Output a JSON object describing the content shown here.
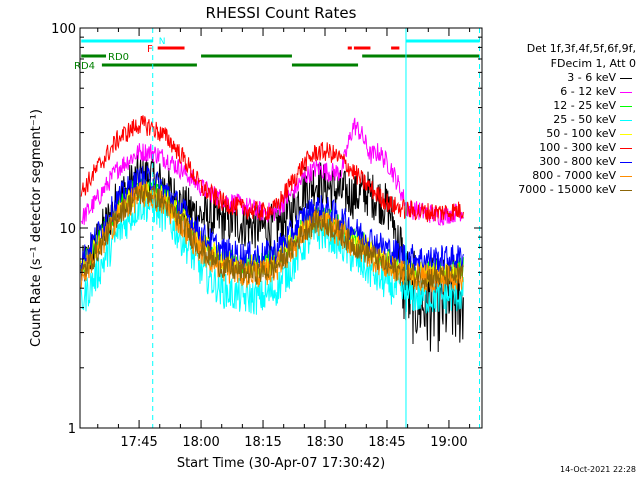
{
  "chart_data": {
    "type": "line",
    "title": "RHESSI Count Rates",
    "xlabel": "Start Time (30-Apr-07 17:30:42)",
    "ylabel": "Count Rate (s⁻¹ detector segment⁻¹)",
    "yscale": "log",
    "ylim": [
      1,
      100
    ],
    "y_ticks": [
      "1",
      "10",
      "100"
    ],
    "xlim": [
      30.7,
      128
    ],
    "x_units": "minutes after 17:00 UT, 30-Apr-07",
    "x_ticks": [
      {
        "value": 45,
        "label": "17:45"
      },
      {
        "value": 60,
        "label": "18:00"
      },
      {
        "value": 75,
        "label": "18:15"
      },
      {
        "value": 90,
        "label": "18:30"
      },
      {
        "value": 105,
        "label": "18:45"
      },
      {
        "value": 120,
        "label": "19:00"
      }
    ],
    "night_boundaries": [
      48.3,
      109.6,
      127.4
    ],
    "flag_label": "N",
    "flag_bars": [
      {
        "label": "N",
        "color": "#00ffff",
        "segments": [
          [
            31,
            48.3
          ],
          [
            109.6,
            127.4
          ]
        ]
      },
      {
        "label": "F",
        "color": "#ff0000",
        "segments": [
          [
            49.5,
            56
          ],
          [
            95.5,
            96.5
          ],
          [
            97,
            101
          ],
          [
            106,
            108
          ]
        ]
      },
      {
        "label": "RD0",
        "color": "#008000",
        "segments": [
          [
            31,
            37
          ],
          [
            60,
            82
          ],
          [
            99,
            127.4
          ]
        ]
      },
      {
        "label": "RD4",
        "color": "#008000",
        "segments": [
          [
            36,
            59
          ],
          [
            82,
            98
          ]
        ]
      }
    ],
    "legend_header": [
      "Det 1f,3f,4f,5f,6f,9f,",
      "FDecim 1, Att 0"
    ],
    "series": [
      {
        "name": "3 - 6 keV",
        "color": "#000000",
        "x": [
          31,
          35,
          40,
          45,
          48,
          52,
          56,
          60,
          65,
          70,
          75,
          78,
          82,
          85,
          88,
          91,
          94,
          97,
          100,
          103,
          106,
          108,
          109,
          111,
          114,
          117,
          120,
          124,
          127
        ],
        "y": [
          6.0,
          8.5,
          14,
          18,
          18,
          15.5,
          12.5,
          11.5,
          11,
          10.5,
          10,
          10.2,
          12,
          16,
          17,
          16,
          15,
          14.5,
          15,
          14,
          12,
          8,
          5.5,
          4.5,
          4.2,
          4.1,
          4.2,
          4.4,
          4.8
        ]
      },
      {
        "name": "6 - 12 keV",
        "color": "#ff00ff",
        "x": [
          31,
          35,
          40,
          45,
          48,
          52,
          56,
          60,
          65,
          70,
          75,
          78,
          82,
          85,
          88,
          91,
          94,
          96,
          97,
          99,
          101,
          103,
          106,
          108,
          110,
          114,
          118,
          122,
          127
        ],
        "y": [
          11,
          14,
          20,
          24,
          24,
          22,
          19,
          16,
          14,
          13,
          12,
          12,
          15,
          18,
          20,
          19,
          19,
          28,
          33,
          29,
          23,
          24,
          20,
          16,
          12.5,
          12,
          11.5,
          12,
          12.5
        ]
      },
      {
        "name": "12 - 25 keV",
        "color": "#00ff00",
        "x": [
          31,
          35,
          40,
          45,
          48,
          52,
          56,
          60,
          65,
          70,
          75,
          78,
          82,
          85,
          88,
          91,
          94,
          97,
          100,
          103,
          106,
          110,
          114,
          118,
          122,
          127
        ],
        "y": [
          6.3,
          8.5,
          13,
          16,
          16,
          14,
          11,
          8.6,
          7,
          6.6,
          6.6,
          7,
          8.6,
          10.5,
          11.5,
          11,
          10,
          8.8,
          8.2,
          7.4,
          6.8,
          6.3,
          6.1,
          6.1,
          6.2,
          6.3
        ]
      },
      {
        "name": "25 - 50 keV",
        "color": "#00ffff",
        "x": [
          31,
          35,
          40,
          45,
          48,
          52,
          56,
          60,
          65,
          70,
          75,
          78,
          82,
          85,
          88,
          91,
          94,
          97,
          100,
          103,
          106,
          110,
          114,
          118,
          122,
          127
        ],
        "y": [
          4.2,
          6,
          9.5,
          13,
          13,
          11,
          8.5,
          6.2,
          4.9,
          4.5,
          4.5,
          4.9,
          6.4,
          8.3,
          9.5,
          9.3,
          8.2,
          7,
          6.3,
          5.6,
          5.1,
          4.6,
          4.5,
          4.5,
          4.6,
          4.8
        ]
      },
      {
        "name": "50 - 100 keV",
        "color": "#ffff00",
        "x": [
          31,
          35,
          40,
          45,
          48,
          52,
          56,
          60,
          65,
          70,
          75,
          78,
          82,
          85,
          88,
          91,
          94,
          97,
          100,
          103,
          106,
          110,
          114,
          118,
          122,
          127
        ],
        "y": [
          6.2,
          8.2,
          12.5,
          15.5,
          15.5,
          13.5,
          10.8,
          8.4,
          6.9,
          6.5,
          6.5,
          6.9,
          8.5,
          10.4,
          11.4,
          10.9,
          9.9,
          8.7,
          8.1,
          7.3,
          6.7,
          6.2,
          6,
          6,
          6.1,
          6.2
        ]
      },
      {
        "name": "100 - 300 keV",
        "color": "#ff0000",
        "x": [
          31,
          35,
          40,
          45,
          48,
          52,
          56,
          60,
          65,
          70,
          75,
          78,
          82,
          85,
          88,
          91,
          94,
          97,
          100,
          103,
          106,
          110,
          114,
          118,
          122,
          127
        ],
        "y": [
          15,
          20,
          28,
          33,
          32,
          28,
          22,
          16,
          13.5,
          12.5,
          12,
          12.5,
          17,
          21,
          24,
          24,
          22,
          19,
          16.5,
          14.5,
          13,
          12.3,
          12,
          12,
          12.2,
          12.6
        ]
      },
      {
        "name": "300 - 800 keV",
        "color": "#0000ff",
        "x": [
          31,
          35,
          40,
          45,
          48,
          52,
          56,
          60,
          65,
          70,
          75,
          78,
          82,
          85,
          88,
          91,
          94,
          97,
          100,
          103,
          106,
          110,
          114,
          118,
          122,
          127
        ],
        "y": [
          6.8,
          9.3,
          14,
          17.5,
          17.5,
          15,
          12,
          9.3,
          7.7,
          7.3,
          7.3,
          7.7,
          9.5,
          11.5,
          12.7,
          12.2,
          11.1,
          9.8,
          9.1,
          8.3,
          7.7,
          7.2,
          7,
          7,
          7.1,
          7.2
        ]
      },
      {
        "name": "800 - 7000 keV",
        "color": "#ff8c00",
        "x": [
          31,
          35,
          40,
          45,
          48,
          52,
          56,
          60,
          65,
          70,
          75,
          78,
          82,
          85,
          88,
          91,
          94,
          97,
          100,
          103,
          106,
          110,
          114,
          118,
          122,
          127
        ],
        "y": [
          5.7,
          7.6,
          11.6,
          14.6,
          14.6,
          12.6,
          10,
          7.7,
          6.3,
          5.9,
          5.9,
          6.3,
          7.8,
          9.6,
          10.6,
          10.2,
          9.2,
          8.1,
          7.5,
          6.8,
          6.2,
          5.8,
          5.6,
          5.6,
          5.7,
          5.8
        ]
      },
      {
        "name": "7000 - 15000 keV",
        "color": "#8b6508",
        "x": [
          31,
          35,
          40,
          45,
          48,
          52,
          56,
          60,
          65,
          70,
          75,
          78,
          82,
          85,
          88,
          91,
          94,
          97,
          100,
          103,
          106,
          110,
          114,
          118,
          122,
          127
        ],
        "y": [
          5.8,
          7.7,
          11.8,
          14.8,
          14.8,
          12.8,
          10.2,
          7.8,
          6.4,
          6,
          6,
          6.4,
          7.9,
          9.7,
          10.8,
          10.3,
          9.3,
          8.2,
          7.6,
          6.9,
          6.3,
          5.9,
          5.7,
          5.7,
          5.8,
          5.9
        ]
      }
    ]
  },
  "footer": {
    "timestamp": "14-Oct-2021 22:28"
  }
}
